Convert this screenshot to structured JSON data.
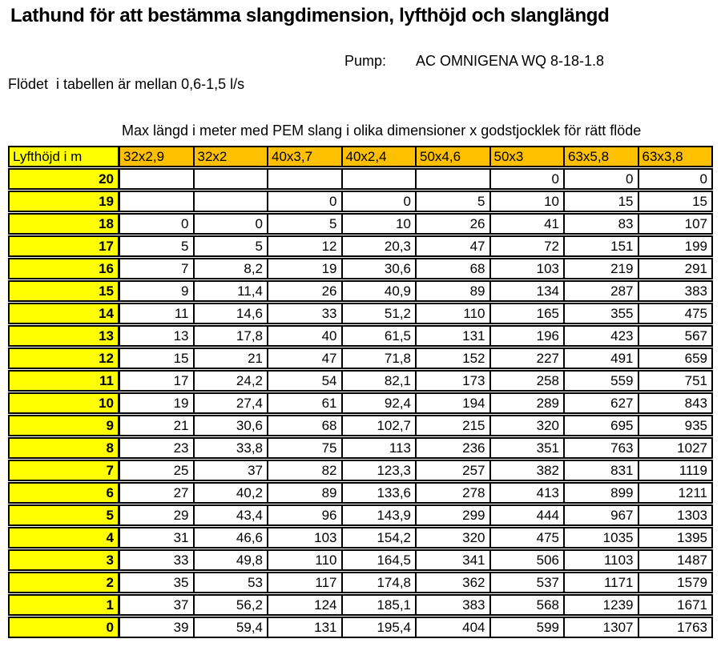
{
  "page": {
    "title": "Lathund för att bestämma slangdimension, lyfthöjd och slanglängd",
    "pump_label": "Pump:",
    "pump_value": "AC OMNIGENA WQ 8-18-1.8",
    "flow_note": "Flödet  i tabellen är mellan 0,6-1,5 l/s",
    "table_caption": "Max längd i meter med PEM slang i olika dimensioner x godstjocklek för rätt flöde"
  },
  "colors": {
    "header_orange": "#FFC000",
    "row_yellow": "#FFFF00",
    "border": "#000000",
    "background": "#FFFFFF"
  },
  "table": {
    "headers": [
      "Lyfthöjd i m",
      "32x2,9",
      "32x2",
      "40x3,7",
      "40x2,4",
      "50x4,6",
      "50x3",
      "63x5,8",
      "63x3,8"
    ],
    "rows": [
      {
        "lift": "20",
        "values": [
          "",
          "",
          "",
          "",
          "",
          "0",
          "0",
          "0"
        ]
      },
      {
        "lift": "19",
        "values": [
          "",
          "",
          "0",
          "0",
          "5",
          "10",
          "15",
          "15"
        ]
      },
      {
        "lift": "18",
        "values": [
          "0",
          "0",
          "5",
          "10",
          "26",
          "41",
          "83",
          "107"
        ]
      },
      {
        "lift": "17",
        "values": [
          "5",
          "5",
          "12",
          "20,3",
          "47",
          "72",
          "151",
          "199"
        ]
      },
      {
        "lift": "16",
        "values": [
          "7",
          "8,2",
          "19",
          "30,6",
          "68",
          "103",
          "219",
          "291"
        ]
      },
      {
        "lift": "15",
        "values": [
          "9",
          "11,4",
          "26",
          "40,9",
          "89",
          "134",
          "287",
          "383"
        ]
      },
      {
        "lift": "14",
        "values": [
          "11",
          "14,6",
          "33",
          "51,2",
          "110",
          "165",
          "355",
          "475"
        ]
      },
      {
        "lift": "13",
        "values": [
          "13",
          "17,8",
          "40",
          "61,5",
          "131",
          "196",
          "423",
          "567"
        ]
      },
      {
        "lift": "12",
        "values": [
          "15",
          "21",
          "47",
          "71,8",
          "152",
          "227",
          "491",
          "659"
        ]
      },
      {
        "lift": "11",
        "values": [
          "17",
          "24,2",
          "54",
          "82,1",
          "173",
          "258",
          "559",
          "751"
        ]
      },
      {
        "lift": "10",
        "values": [
          "19",
          "27,4",
          "61",
          "92,4",
          "194",
          "289",
          "627",
          "843"
        ]
      },
      {
        "lift": "9",
        "values": [
          "21",
          "30,6",
          "68",
          "102,7",
          "215",
          "320",
          "695",
          "935"
        ]
      },
      {
        "lift": "8",
        "values": [
          "23",
          "33,8",
          "75",
          "113",
          "236",
          "351",
          "763",
          "1027"
        ]
      },
      {
        "lift": "7",
        "values": [
          "25",
          "37",
          "82",
          "123,3",
          "257",
          "382",
          "831",
          "1119"
        ]
      },
      {
        "lift": "6",
        "values": [
          "27",
          "40,2",
          "89",
          "133,6",
          "278",
          "413",
          "899",
          "1211"
        ]
      },
      {
        "lift": "5",
        "values": [
          "29",
          "43,4",
          "96",
          "143,9",
          "299",
          "444",
          "967",
          "1303"
        ]
      },
      {
        "lift": "4",
        "values": [
          "31",
          "46,6",
          "103",
          "154,2",
          "320",
          "475",
          "1035",
          "1395"
        ]
      },
      {
        "lift": "3",
        "values": [
          "33",
          "49,8",
          "110",
          "164,5",
          "341",
          "506",
          "1103",
          "1487"
        ]
      },
      {
        "lift": "2",
        "values": [
          "35",
          "53",
          "117",
          "174,8",
          "362",
          "537",
          "1171",
          "1579"
        ]
      },
      {
        "lift": "1",
        "values": [
          "37",
          "56,2",
          "124",
          "185,1",
          "383",
          "568",
          "1239",
          "1671"
        ]
      },
      {
        "lift": "0",
        "values": [
          "39",
          "59,4",
          "131",
          "195,4",
          "404",
          "599",
          "1307",
          "1763"
        ]
      }
    ]
  }
}
